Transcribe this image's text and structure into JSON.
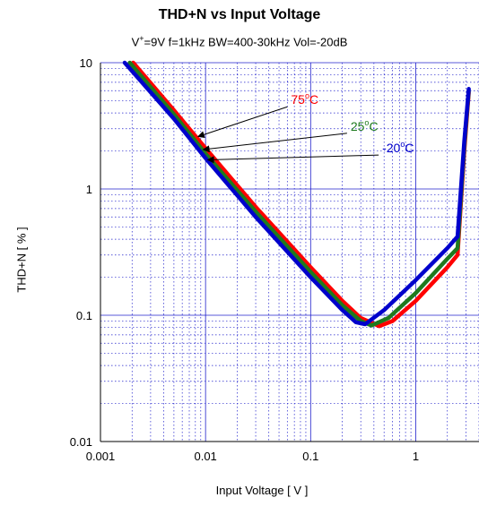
{
  "chart_data": {
    "type": "line",
    "title": "THD+N vs Input Voltage",
    "subtitle_parts": {
      "pre": "V",
      "sup": "+",
      "post": "=9V f=1kHz BW=400-30kHz Vol=-20dB"
    },
    "xlabel": "Input Voltage [ V ]",
    "ylabel": "THD+N [ % ]",
    "x_scale": "log",
    "y_scale": "log",
    "xlim": [
      0.001,
      4
    ],
    "ylim": [
      0.01,
      10
    ],
    "x_ticks": [
      "0.001",
      "0.01",
      "0.1",
      "1"
    ],
    "y_ticks": [
      "0.01",
      "0.1",
      "1",
      "10"
    ],
    "grid": true,
    "series": [
      {
        "name": "75°C",
        "label_parts": {
          "num": "75",
          "deg": "o",
          "unit": "C"
        },
        "color": "#ff0000",
        "points": [
          [
            0.00205,
            10
          ],
          [
            0.005,
            4.2
          ],
          [
            0.01,
            2.1
          ],
          [
            0.03,
            0.72
          ],
          [
            0.1,
            0.24
          ],
          [
            0.2,
            0.13
          ],
          [
            0.3,
            0.095
          ],
          [
            0.45,
            0.082
          ],
          [
            0.6,
            0.09
          ],
          [
            1.0,
            0.13
          ],
          [
            2.0,
            0.24
          ],
          [
            2.5,
            0.3
          ],
          [
            2.9,
            2.0
          ],
          [
            3.2,
            5.8
          ]
        ]
      },
      {
        "name": "25°C",
        "label_parts": {
          "num": "25",
          "deg": "o",
          "unit": "C"
        },
        "color": "#1e7a1e",
        "points": [
          [
            0.0019,
            10
          ],
          [
            0.005,
            3.9
          ],
          [
            0.01,
            1.9
          ],
          [
            0.03,
            0.66
          ],
          [
            0.1,
            0.22
          ],
          [
            0.2,
            0.12
          ],
          [
            0.3,
            0.09
          ],
          [
            0.38,
            0.083
          ],
          [
            0.55,
            0.095
          ],
          [
            1.0,
            0.15
          ],
          [
            2.0,
            0.28
          ],
          [
            2.5,
            0.34
          ],
          [
            2.9,
            2.2
          ],
          [
            3.2,
            6.0
          ]
        ]
      },
      {
        "name": "-20°C",
        "label_parts": {
          "num": "-20",
          "deg": "o",
          "unit": "C"
        },
        "color": "#0000cc",
        "points": [
          [
            0.0017,
            10
          ],
          [
            0.005,
            3.6
          ],
          [
            0.01,
            1.75
          ],
          [
            0.03,
            0.6
          ],
          [
            0.1,
            0.2
          ],
          [
            0.2,
            0.11
          ],
          [
            0.27,
            0.088
          ],
          [
            0.33,
            0.085
          ],
          [
            0.5,
            0.11
          ],
          [
            1.0,
            0.19
          ],
          [
            2.0,
            0.34
          ],
          [
            2.5,
            0.42
          ],
          [
            2.9,
            2.4
          ],
          [
            3.2,
            6.2
          ]
        ]
      }
    ],
    "annotations": [
      {
        "series": "75°C",
        "label_x": 0.065,
        "label_y": 4.7,
        "arrow_to_x": 0.0085,
        "arrow_to_y": 2.6
      },
      {
        "series": "25°C",
        "label_x": 0.24,
        "label_y": 2.9,
        "arrow_to_x": 0.0095,
        "arrow_to_y": 2.05
      },
      {
        "series": "-20°C",
        "label_x": 0.48,
        "label_y": 1.95,
        "arrow_to_x": 0.0105,
        "arrow_to_y": 1.7
      }
    ]
  }
}
